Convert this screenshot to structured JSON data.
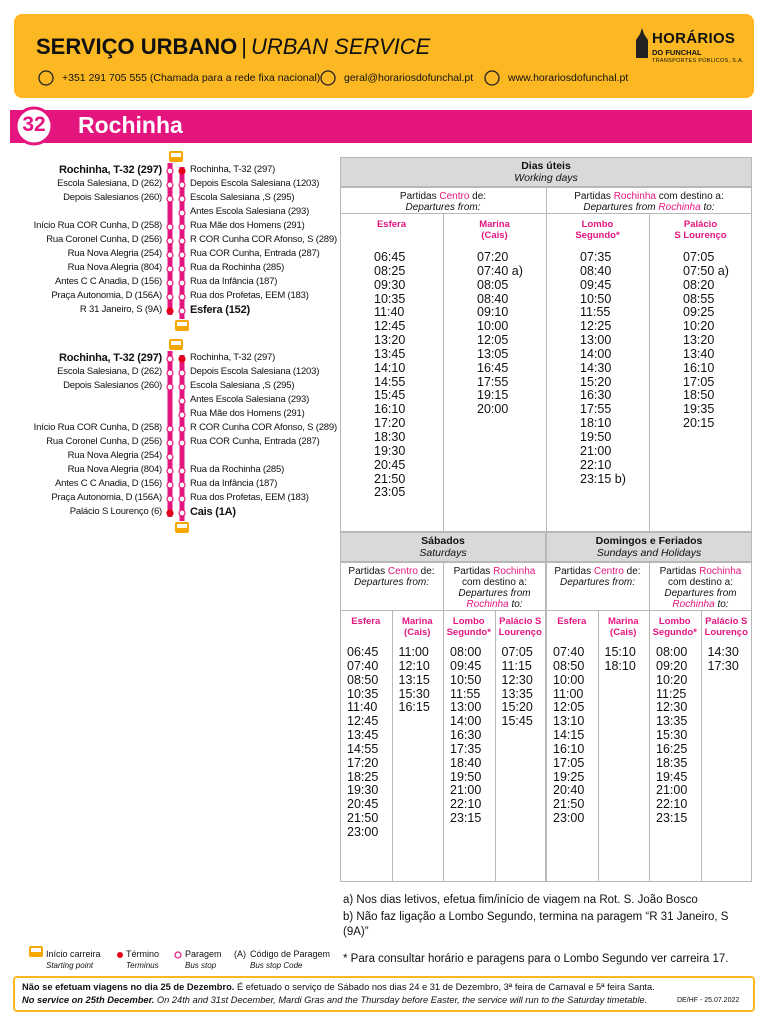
{
  "header": {
    "title": "SERVIÇO URBANO",
    "separator": "|",
    "subtitle": "URBAN SERVICE",
    "phone": "+351 291 705 555 (Chamada para a rede fixa nacional)",
    "email": "geral@horariosdofunchal.pt",
    "web": "www.horariosdofunchal.pt",
    "logo": {
      "name": "HORÁRIOS",
      "place": "DO FUNCHAL",
      "company": "TRANSPORTES PÚBLICOS, S.A."
    }
  },
  "route": {
    "number": "32",
    "name": "Rochinha"
  },
  "diagrams": [
    {
      "left": [
        "Rochinha, T-32 (297)",
        "Escola Salesiana, D (262)",
        "Depois Salesianos (260)",
        null,
        "Início Rua COR Cunha, D (258)",
        "Rua Coronel Cunha, D (256)",
        "Rua Nova Alegria (254)",
        "Rua Nova Alegria (804)",
        "Antes C C Anadia, D (156)",
        "Praça Autonomia, D (156A)",
        "R 31 Janeiro, S (9A)"
      ],
      "right": [
        "Rochinha, T-32 (297)",
        "Depois Escola Salesiana (1203)",
        "Escola Salesiana ,S (295)",
        "Antes Escola Salesiana (293)",
        "Rua Mãe dos Homens (291)",
        "R COR Cunha COR Afonso, S (289)",
        "Rua COR Cunha, Entrada (287)",
        "Rua da Rochinha (285)",
        "Rua da Infância (187)",
        "Rua dos Profetas, EEM (183)",
        "Esfera (152)"
      ]
    },
    {
      "left": [
        "Rochinha, T-32 (297)",
        "Escola Salesiana, D (262)",
        "Depois Salesianos (260)",
        null,
        null,
        "Início Rua COR Cunha, D (258)",
        "Rua Coronel Cunha, D (256)",
        "Rua Nova Alegria (254)",
        "Rua Nova Alegria (804)",
        "Antes C C Anadia, D (156)",
        "Praça Autonomia, D (156A)",
        "Palácio S Lourenço (6)"
      ],
      "right": [
        "Rochinha, T-32 (297)",
        "Depois Escola Salesiana (1203)",
        "Escola Salesiana ,S (295)",
        "Antes Escola Salesiana (293)",
        "Rua Mãe dos Homens (291)",
        "R COR Cunha COR Afonso, S (289)",
        "Rua COR Cunha, Entrada (287)",
        null,
        "Rua da Rochinha (285)",
        "Rua da Infância (187)",
        "Rua dos Profetas, EEM (183)",
        "Cais (1A)"
      ]
    }
  ],
  "legend": [
    {
      "label": "Início carreira",
      "sublabel": "Starting point"
    },
    {
      "label": "Término",
      "sublabel": "Terminus"
    },
    {
      "label": "Paragem",
      "sublabel": "Bus stop"
    },
    {
      "symbol": "(A)",
      "label": "Código de Paragem",
      "sublabel": "Bus stop Code"
    }
  ],
  "timetables": [
    {
      "title": "Dias úteis",
      "subtitle": "Working days",
      "groups": [
        {
          "heading": [
            "Partidas ",
            "Centro",
            " de:"
          ],
          "subheading": [
            "Departures from:"
          ],
          "columns": [
            {
              "label": [
                "Esfera"
              ],
              "times": [
                "06:45",
                "08:25",
                "09:30",
                "10:35",
                "11:40",
                "12:45",
                "13:20",
                "13:45",
                "14:10",
                "14:55",
                "15:45",
                "16:10",
                "17:20",
                "18:30",
                "19:30",
                "20:45",
                "21:50",
                "23:05"
              ]
            },
            {
              "label": [
                "Marina",
                "(Cais)"
              ],
              "times": [
                "07:20",
                "07:40 a)",
                "08:05",
                "08:40",
                "09:10",
                "10:00",
                "12:05",
                "13:05",
                "16:45",
                "17:55",
                "19:15",
                "20:00"
              ]
            }
          ]
        },
        {
          "heading": [
            "Partidas ",
            "Rochinha",
            " com destino a:"
          ],
          "subheading": [
            "Departures from ",
            "Rochinha",
            " to:"
          ],
          "columns": [
            {
              "label": [
                "Lombo",
                "Segundo*"
              ],
              "times": [
                "07:35",
                "08:40",
                "09:45",
                "10:50",
                "11:55",
                "12:25",
                "13:00",
                "14:00",
                "14:30",
                "15:20",
                "16:30",
                "17:55",
                "18:10",
                "19:50",
                "21:00",
                "22:10",
                "23:15 b)"
              ]
            },
            {
              "label": [
                "Palácio",
                "S Lourenço"
              ],
              "times": [
                "07:05",
                "07:50 a)",
                "08:20",
                "08:55",
                "09:25",
                "10:20",
                "13:20",
                "13:40",
                "16:10",
                "17:05",
                "18:50",
                "19:35",
                "20:15"
              ]
            }
          ]
        }
      ]
    },
    {
      "title": "Sábados",
      "subtitle": "Saturdays",
      "groups": [
        {
          "heading": [
            "Partidas ",
            "Centro",
            " de:"
          ],
          "subheading": [
            "Departures from:"
          ],
          "columns": [
            {
              "label": [
                "Esfera"
              ],
              "times": [
                "06:45",
                "07:40",
                "08:50",
                "10:35",
                "11:40",
                "12:45",
                "13:45",
                "14:55",
                "17:20",
                "18:25",
                "19:30",
                "20:45",
                "21:50",
                "23:00"
              ]
            },
            {
              "label": [
                "Marina",
                "(Cais)"
              ],
              "times": [
                "11:00",
                "12:10",
                "13:15",
                "15:30",
                "16:15"
              ]
            }
          ]
        },
        {
          "heading": [
            "Partidas ",
            "Rochinha",
            " com destino a:"
          ],
          "subheading": [
            "Departures from ",
            "Rochinha",
            " to:"
          ],
          "columns": [
            {
              "label": [
                "Lombo",
                "Segundo*"
              ],
              "times": [
                "08:00",
                "09:45",
                "10:50",
                "11:55",
                "13:00",
                "14:00",
                "16:30",
                "17:35",
                "18:40",
                "19:50",
                "21:00",
                "22:10",
                "23:15"
              ]
            },
            {
              "label": [
                "Palácio S",
                "Lourenço"
              ],
              "times": [
                "07:05",
                "11:15",
                "12:30",
                "13:35",
                "15:20",
                "15:45"
              ]
            }
          ]
        }
      ]
    },
    {
      "title": "Domingos e Feriados",
      "subtitle": "Sundays and Holidays",
      "groups": [
        {
          "heading": [
            "Partidas ",
            "Centro",
            " de:"
          ],
          "subheading": [
            "Departures from:"
          ],
          "columns": [
            {
              "label": [
                "Esfera"
              ],
              "times": [
                "07:40",
                "08:50",
                "10:00",
                "11:00",
                "12:05",
                "13:10",
                "14:15",
                "16:10",
                "17:05",
                "19:25",
                "20:40",
                "21:50",
                "23:00"
              ]
            },
            {
              "label": [
                "Marina",
                "(Cais)"
              ],
              "times": [
                "15:10",
                "18:10"
              ]
            }
          ]
        },
        {
          "heading": [
            "Partidas ",
            "Rochinha",
            " com destino a:"
          ],
          "subheading": [
            "Departures from ",
            "Rochinha",
            " to:"
          ],
          "columns": [
            {
              "label": [
                "Lombo",
                "Segundo*"
              ],
              "times": [
                "08:00",
                "09:20",
                "10:20",
                "11:25",
                "12:30",
                "13:35",
                "15:30",
                "16:25",
                "18:35",
                "19:45",
                "21:00",
                "22:10",
                "23:15"
              ]
            },
            {
              "label": [
                "Palácio S",
                "Lourenço"
              ],
              "times": [
                "14:30",
                "17:30"
              ]
            }
          ]
        }
      ]
    }
  ],
  "notes": [
    "a) Nos dias letivos, efetua fim/início de viagem na Rot. S. João Bosco",
    "b) Não faz ligação a Lombo Segundo, termina na paragem “R 31 Janeiro, S (9A)”",
    "* Para consultar horário e paragens para o Lombo Segundo ver carreira 17."
  ],
  "footer": {
    "line1": [
      "Não se efetuam viagens no dia 25 de Dezembro.",
      " É efetuado o serviço de Sábado nos dias 24 e 31 de Dezembro, 3ª feira de Carnaval e 5ª feira Santa."
    ],
    "line2": [
      "No service on 25th December.",
      " On 24th and 31st December, Mardi Gras and the Thursday before Easter, the service will run to the Saturday timetable."
    ],
    "reference": "DE/HF - 25.07.2022"
  }
}
